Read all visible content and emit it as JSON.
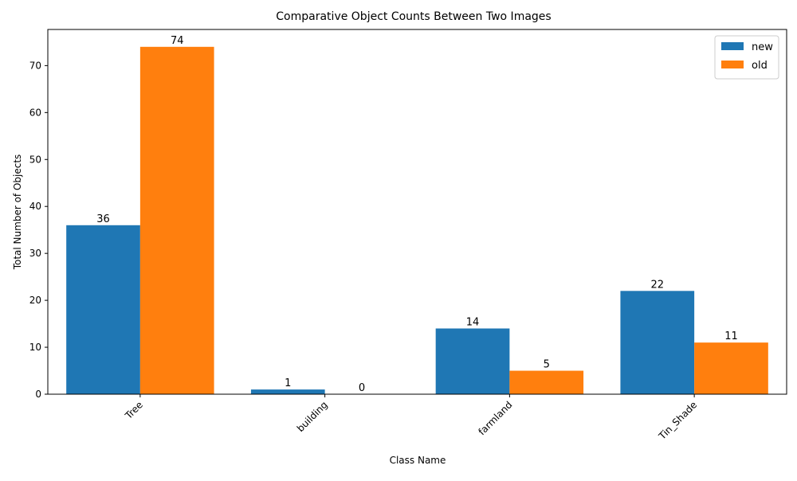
{
  "chart_data": {
    "type": "bar",
    "title": "Comparative Object Counts Between Two Images",
    "xlabel": "Class Name",
    "ylabel": "Total Number of Objects",
    "categories": [
      "Tree",
      "building",
      "farmland",
      "Tin_Shade"
    ],
    "series": [
      {
        "name": "new",
        "values": [
          36,
          1,
          14,
          22
        ],
        "color": "#1f77b4"
      },
      {
        "name": "old",
        "values": [
          74,
          0,
          5,
          11
        ],
        "color": "#ff7f0e"
      }
    ],
    "ylim": [
      0,
      77.7
    ],
    "yticks": [
      0,
      10,
      20,
      30,
      40,
      50,
      60,
      70
    ],
    "grid": false,
    "legend_position": "top-right",
    "data_labels": true
  }
}
